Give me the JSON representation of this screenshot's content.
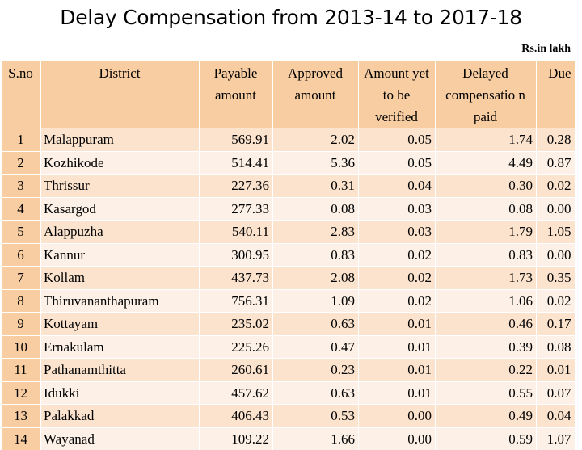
{
  "title": "Delay Compensation from 2013-14 to 2017-18",
  "unit_note": "Rs.in lakh",
  "headers": {
    "sno": "S.no",
    "district": "District",
    "payable": "Payable amount",
    "approved": "Approved amount",
    "verify": "Amount yet to be verified",
    "delayed": "Delayed compensatio n paid",
    "due": "Due"
  },
  "rows": [
    {
      "sno": "1",
      "district": "Malappuram",
      "payable": "569.91",
      "approved": "2.02",
      "verify": "0.05",
      "delayed": "1.74",
      "due": "0.28"
    },
    {
      "sno": "2",
      "district": "Kozhikode",
      "payable": "514.41",
      "approved": "5.36",
      "verify": "0.05",
      "delayed": "4.49",
      "due": "0.87"
    },
    {
      "sno": "3",
      "district": "Thrissur",
      "payable": "227.36",
      "approved": "0.31",
      "verify": "0.04",
      "delayed": "0.30",
      "due": "0.02"
    },
    {
      "sno": "4",
      "district": "Kasargod",
      "payable": "277.33",
      "approved": "0.08",
      "verify": "0.03",
      "delayed": "0.08",
      "due": "0.00"
    },
    {
      "sno": "5",
      "district": "Alappuzha",
      "payable": "540.11",
      "approved": "2.83",
      "verify": "0.03",
      "delayed": "1.79",
      "due": "1.05"
    },
    {
      "sno": "6",
      "district": "Kannur",
      "payable": "300.95",
      "approved": "0.83",
      "verify": "0.02",
      "delayed": "0.83",
      "due": "0.00"
    },
    {
      "sno": "7",
      "district": "Kollam",
      "payable": "437.73",
      "approved": "2.08",
      "verify": "0.02",
      "delayed": "1.73",
      "due": "0.35"
    },
    {
      "sno": "8",
      "district": "Thiruvananthapuram",
      "payable": "756.31",
      "approved": "1.09",
      "verify": "0.02",
      "delayed": "1.06",
      "due": "0.02"
    },
    {
      "sno": "9",
      "district": "Kottayam",
      "payable": "235.02",
      "approved": "0.63",
      "verify": "0.01",
      "delayed": "0.46",
      "due": "0.17"
    },
    {
      "sno": "10",
      "district": "Ernakulam",
      "payable": "225.26",
      "approved": "0.47",
      "verify": "0.01",
      "delayed": "0.39",
      "due": "0.08"
    },
    {
      "sno": "11",
      "district": "Pathanamthitta",
      "payable": "260.61",
      "approved": "0.23",
      "verify": "0.01",
      "delayed": "0.22",
      "due": "0.01"
    },
    {
      "sno": "12",
      "district": "Idukki",
      "payable": "457.62",
      "approved": "0.63",
      "verify": "0.01",
      "delayed": "0.55",
      "due": "0.07"
    },
    {
      "sno": "13",
      "district": "Palakkad",
      "payable": "406.43",
      "approved": "0.53",
      "verify": "0.00",
      "delayed": "0.49",
      "due": "0.04"
    },
    {
      "sno": "14",
      "district": "Wayanad",
      "payable": "109.22",
      "approved": "1.66",
      "verify": "0.00",
      "delayed": "0.59",
      "due": "1.07"
    }
  ]
}
